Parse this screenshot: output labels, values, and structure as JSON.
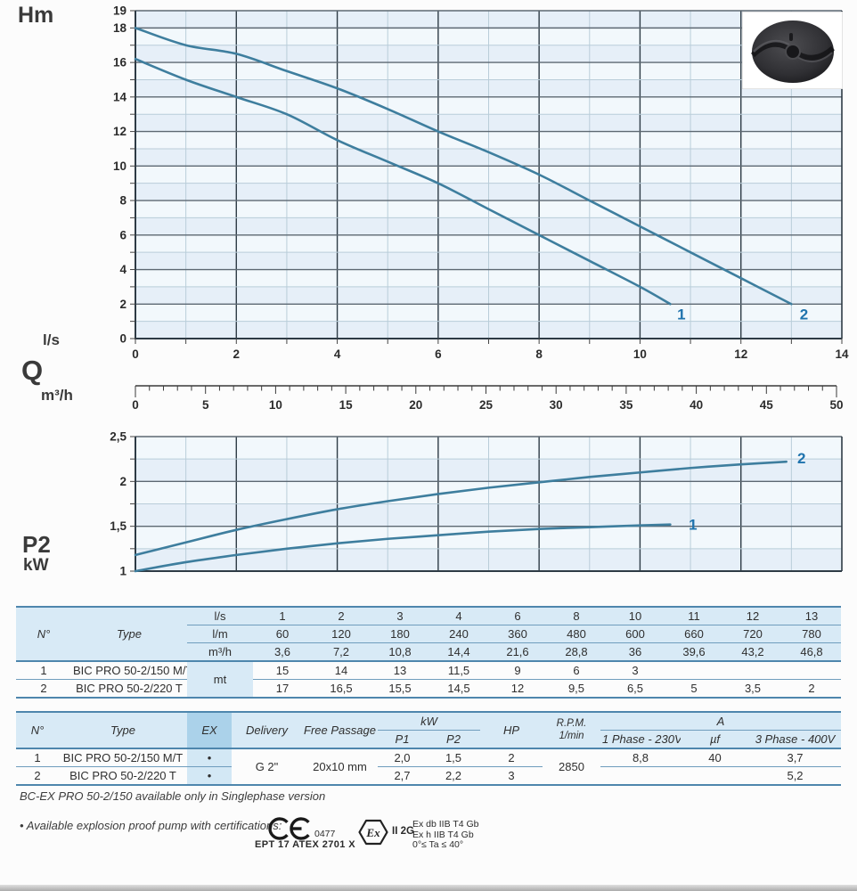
{
  "labels": {
    "y_axis_title": "Hm",
    "x_axis_unit_primary": "l/s",
    "x_axis_title": "Q",
    "x_axis_unit_secondary": "m³/h",
    "power_axis_title": "P2",
    "power_axis_unit": "kW"
  },
  "colors": {
    "curve": "#3e7e9e",
    "curve_label": "#1f73ad",
    "chart_bg_a": "#e6eff8",
    "chart_bg_b": "#f2f8fc",
    "grid_minor": "#b9cdd9",
    "grid_major": "#5d6872",
    "grid_axis": "#2e3b45",
    "table_border": "#4e86ad",
    "table_header_bg": "#d8eaf6",
    "ex_header_bg": "#abd2ea",
    "ex_body_bg": "#d3e8f5"
  },
  "chart_data": [
    {
      "type": "line",
      "name": "head-flow-curves",
      "ylabel": "Hm",
      "xlabel": "Q (l/s)",
      "xlim": [
        0,
        14
      ],
      "ylim": [
        0,
        19
      ],
      "x_minor_step": 1,
      "x_major_step": 2,
      "y_minor_step": 1,
      "y_major_step": 2,
      "x_ticks": [
        [
          0,
          "0"
        ],
        [
          2,
          "2"
        ],
        [
          4,
          "4"
        ],
        [
          6,
          "6"
        ],
        [
          8,
          "8"
        ],
        [
          10,
          "10"
        ],
        [
          12,
          "12"
        ],
        [
          14,
          "14"
        ]
      ],
      "y_ticks": [
        [
          0,
          "0"
        ],
        [
          2,
          "2"
        ],
        [
          4,
          "4"
        ],
        [
          6,
          "6"
        ],
        [
          8,
          "8"
        ],
        [
          10,
          "10"
        ],
        [
          12,
          "12"
        ],
        [
          14,
          "14"
        ],
        [
          16,
          "16"
        ],
        [
          18,
          "18"
        ],
        [
          19,
          "19"
        ]
      ],
      "series": [
        {
          "label": "1",
          "label_pos": [
            10.82,
            1.12
          ],
          "points": [
            [
              0,
              16.2
            ],
            [
              1,
              15
            ],
            [
              2,
              14
            ],
            [
              3,
              13
            ],
            [
              4,
              11.5
            ],
            [
              5,
              10.25
            ],
            [
              6,
              9
            ],
            [
              7,
              7.5
            ],
            [
              8,
              6
            ],
            [
              9,
              4.5
            ],
            [
              10,
              3
            ],
            [
              10.6,
              2
            ]
          ]
        },
        {
          "label": "2",
          "label_pos": [
            13.25,
            1.12
          ],
          "points": [
            [
              0,
              18
            ],
            [
              1,
              17
            ],
            [
              2,
              16.5
            ],
            [
              3,
              15.5
            ],
            [
              4,
              14.5
            ],
            [
              5,
              13.3
            ],
            [
              6,
              12
            ],
            [
              7,
              10.8
            ],
            [
              8,
              9.5
            ],
            [
              9,
              8
            ],
            [
              10,
              6.5
            ],
            [
              11,
              5
            ],
            [
              12,
              3.5
            ],
            [
              13,
              2
            ]
          ]
        }
      ],
      "secondary_axis": {
        "label": "m³/h",
        "range": [
          0,
          50
        ],
        "minor_step": 1,
        "label_step": 5,
        "tick_labels": [
          [
            0,
            "0"
          ],
          [
            5,
            "5"
          ],
          [
            10,
            "10"
          ],
          [
            15,
            "15"
          ],
          [
            20,
            "20"
          ],
          [
            25,
            "25"
          ],
          [
            30,
            "30"
          ],
          [
            35,
            "35"
          ],
          [
            40,
            "40"
          ],
          [
            45,
            "45"
          ],
          [
            50,
            "50"
          ]
        ]
      }
    },
    {
      "type": "line",
      "name": "power-p2-curves",
      "ylabel": "P2 kW",
      "xlim": [
        0,
        14
      ],
      "ylim": [
        1,
        2.5
      ],
      "x_minor_step": 1,
      "x_major_step": 2,
      "y_minor_step": 0.25,
      "y_major_step": 0.5,
      "x_ticks": [],
      "y_ticks": [
        [
          1,
          "1"
        ],
        [
          1.5,
          "1,5"
        ],
        [
          2,
          "2"
        ],
        [
          2.5,
          "2,5"
        ]
      ],
      "series": [
        {
          "label": "1",
          "label_pos": [
            11.05,
            1.46
          ],
          "points": [
            [
              0,
              1.0
            ],
            [
              1,
              1.1
            ],
            [
              2,
              1.18
            ],
            [
              3,
              1.25
            ],
            [
              4,
              1.31
            ],
            [
              5,
              1.36
            ],
            [
              6,
              1.4
            ],
            [
              7,
              1.44
            ],
            [
              8,
              1.47
            ],
            [
              9,
              1.49
            ],
            [
              10,
              1.51
            ],
            [
              10.6,
              1.52
            ]
          ]
        },
        {
          "label": "2",
          "label_pos": [
            13.2,
            2.2
          ],
          "points": [
            [
              0,
              1.18
            ],
            [
              1,
              1.32
            ],
            [
              2,
              1.46
            ],
            [
              3,
              1.58
            ],
            [
              4,
              1.69
            ],
            [
              5,
              1.78
            ],
            [
              6,
              1.86
            ],
            [
              7,
              1.93
            ],
            [
              8,
              1.99
            ],
            [
              9,
              2.05
            ],
            [
              10,
              2.1
            ],
            [
              11,
              2.15
            ],
            [
              12,
              2.19
            ],
            [
              12.9,
              2.22
            ]
          ]
        }
      ]
    }
  ],
  "tables": {
    "hydraulic": {
      "n_header": "N°",
      "type_header": "Type",
      "body_unit": "mt",
      "unit_rows": [
        {
          "unit": "l/s",
          "values": [
            "1",
            "2",
            "3",
            "4",
            "6",
            "8",
            "10",
            "11",
            "12",
            "13"
          ]
        },
        {
          "unit": "l/m",
          "values": [
            "60",
            "120",
            "180",
            "240",
            "360",
            "480",
            "600",
            "660",
            "720",
            "780"
          ]
        },
        {
          "unit": "m³/h",
          "values": [
            "3,6",
            "7,2",
            "10,8",
            "14,4",
            "21,6",
            "28,8",
            "36",
            "39,6",
            "43,2",
            "46,8"
          ]
        }
      ],
      "rows": [
        {
          "n": "1",
          "type": "BIC PRO 50-2/150 M/T",
          "values": [
            "15",
            "14",
            "13",
            "11,5",
            "9",
            "6",
            "3",
            "",
            "",
            ""
          ]
        },
        {
          "n": "2",
          "type": "BIC PRO 50-2/220 T",
          "values": [
            "17",
            "16,5",
            "15,5",
            "14,5",
            "12",
            "9,5",
            "6,5",
            "5",
            "3,5",
            "2"
          ]
        }
      ]
    },
    "electrical": {
      "headers": {
        "n": "N°",
        "type": "Type",
        "ex": "EX",
        "delivery": "Delivery",
        "free_passage": "Free Passage",
        "kw": "kW",
        "p1": "P1",
        "p2": "P2",
        "hp": "HP",
        "rpm1": "R.P.M.",
        "rpm2": "1/min",
        "a": "A",
        "phase1": "1 Phase - 230V",
        "uf": "µf",
        "phase3": "3 Phase - 400V"
      },
      "shared": {
        "delivery": "G 2\"",
        "free_passage": "20x10 mm",
        "rpm": "2850"
      },
      "rows": [
        {
          "n": "1",
          "type": "BIC PRO 50-2/150 M/T",
          "ex": "•",
          "p1": "2,0",
          "p2": "1,5",
          "hp": "2",
          "phase1": "8,8",
          "uf": "40",
          "phase3": "3,7"
        },
        {
          "n": "2",
          "type": "BIC PRO 50-2/220 T",
          "ex": "•",
          "p1": "2,7",
          "p2": "2,2",
          "hp": "3",
          "phase1": "",
          "uf": "",
          "phase3": "5,2"
        }
      ]
    }
  },
  "notes": {
    "note1": "BC-EX PRO 50-2/150 available only in Singlephase version",
    "note2_bullet": "•",
    "note2": "Available explosion proof pump with certifications:",
    "ce_number": "0477",
    "ce_cert": "EPT 17 ATEX 2701 X",
    "ex_symbol": "Ex",
    "ex_marking": "II 2G",
    "ex_lines": [
      "Ex db IIB T4 Gb",
      "Ex h IIB T4 Gb",
      "0°≤ Ta ≤ 40°"
    ]
  }
}
